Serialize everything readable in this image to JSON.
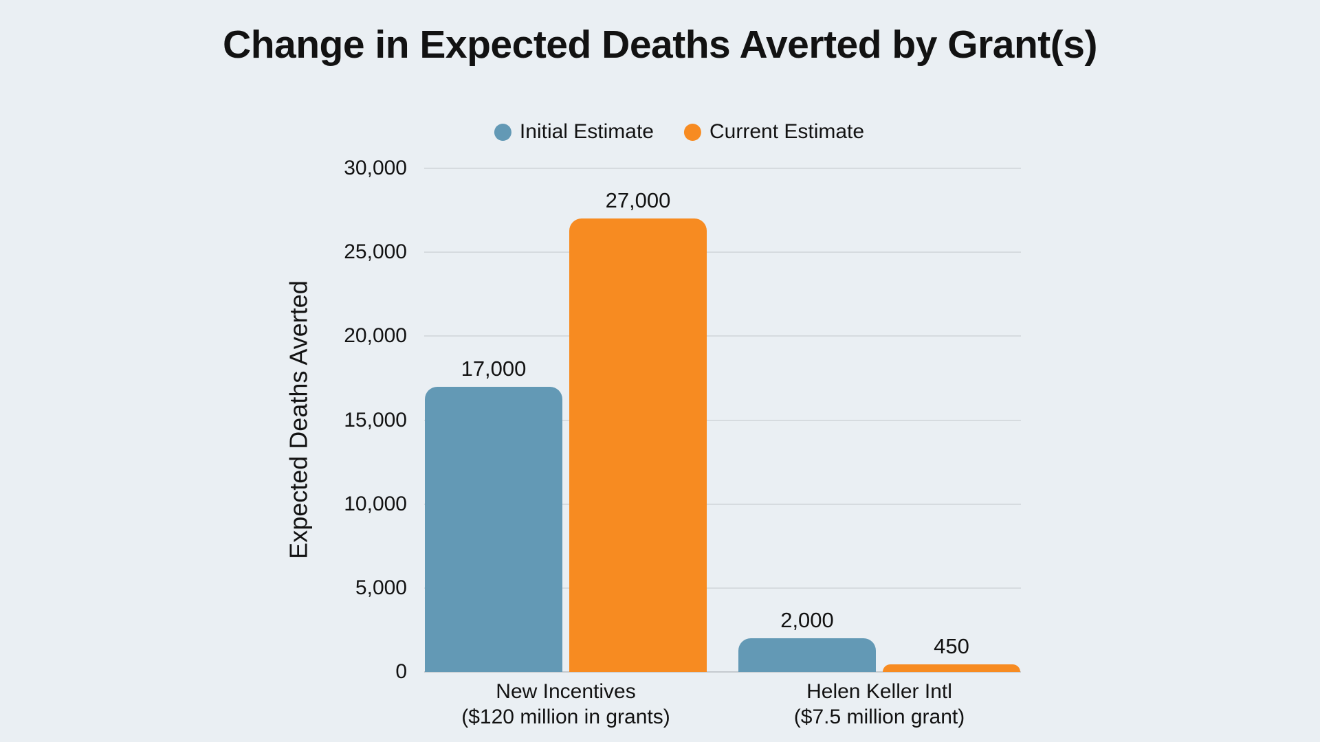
{
  "title": "Change in Expected Deaths Averted by Grant(s)",
  "colors": {
    "background": "#EAEFF3",
    "text": "#121212",
    "initial": "#6399B5",
    "current": "#F78B21",
    "gridline": "#D6DBDF",
    "baseline": "#C5CACF"
  },
  "legend": {
    "items": [
      {
        "label": "Initial Estimate",
        "color_key": "initial"
      },
      {
        "label": "Current Estimate",
        "color_key": "current"
      }
    ]
  },
  "chart_data": {
    "type": "bar",
    "title": "Change in Expected Deaths Averted by Grant(s)",
    "xlabel": "",
    "ylabel": "Expected Deaths Averted",
    "ylim": [
      0,
      30000
    ],
    "ytick_interval": 5000,
    "grid": true,
    "legend_position": "top",
    "yticks": [
      {
        "value": 30000,
        "label": "30,000"
      },
      {
        "value": 25000,
        "label": "25,000"
      },
      {
        "value": 20000,
        "label": "20,000"
      },
      {
        "value": 15000,
        "label": "15,000"
      },
      {
        "value": 10000,
        "label": "10,000"
      },
      {
        "value": 5000,
        "label": "5,000"
      },
      {
        "value": 0,
        "label": "0"
      }
    ],
    "categories": [
      {
        "name": "New Incentives",
        "detail": "($120 million in grants)"
      },
      {
        "name": "Helen Keller Intl",
        "detail": "($7.5 million grant)"
      }
    ],
    "series": [
      {
        "name": "Initial Estimate",
        "color_key": "initial",
        "values": [
          17000,
          2000
        ],
        "labels": [
          "17,000",
          "2,000"
        ]
      },
      {
        "name": "Current Estimate",
        "color_key": "current",
        "values": [
          27000,
          450
        ],
        "labels": [
          "27,000",
          "450"
        ]
      }
    ]
  }
}
